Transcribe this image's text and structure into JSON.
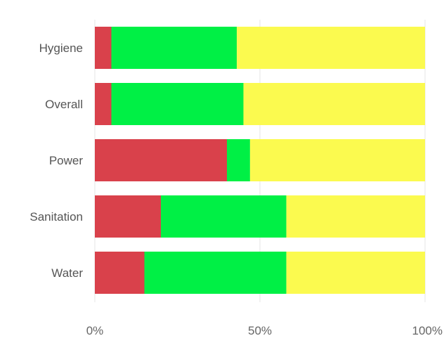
{
  "chart_data": {
    "type": "bar",
    "orientation": "horizontal",
    "stacked": "percent",
    "categories": [
      "Hygiene",
      "Overall",
      "Power",
      "Sanitation",
      "Water"
    ],
    "series": [
      {
        "values": [
          5,
          5,
          40,
          20,
          15
        ],
        "color": "#d9414b"
      },
      {
        "values": [
          38,
          40,
          7,
          38,
          43
        ],
        "color": "#00f045"
      },
      {
        "values": [
          57,
          55,
          53,
          42,
          42
        ],
        "color": "#fbfa4f"
      }
    ],
    "xlim": [
      0,
      100
    ],
    "x_ticks": [
      "0%",
      "50%",
      "100%"
    ],
    "grid": false,
    "legend": "none"
  }
}
